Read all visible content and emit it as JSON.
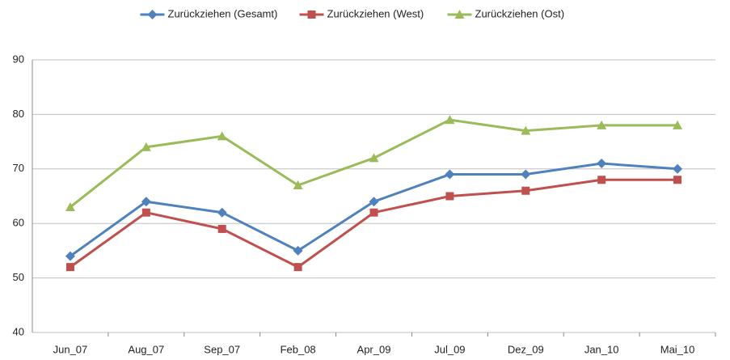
{
  "chart_data": {
    "type": "line",
    "categories": [
      "Jun_07",
      "Aug_07",
      "Sep_07",
      "Feb_08",
      "Apr_09",
      "Jul_09",
      "Dez_09",
      "Jan_10",
      "Mai_10"
    ],
    "series": [
      {
        "name": "Zurückziehen (Gesamt)",
        "color": "#4f81bd",
        "marker": "diamond",
        "values": [
          54,
          64,
          62,
          55,
          64,
          69,
          69,
          71,
          70
        ]
      },
      {
        "name": "Zurückziehen (West)",
        "color": "#c0504d",
        "marker": "square",
        "values": [
          52,
          62,
          59,
          52,
          62,
          65,
          66,
          68,
          68
        ]
      },
      {
        "name": "Zurückziehen (Ost)",
        "color": "#9bbb59",
        "marker": "triangle",
        "values": [
          63,
          74,
          76,
          67,
          72,
          79,
          77,
          78,
          78
        ]
      }
    ],
    "ylim": [
      40,
      90
    ],
    "yticks": [
      40,
      50,
      60,
      70,
      80,
      90
    ],
    "grid": true,
    "legend": "top"
  }
}
